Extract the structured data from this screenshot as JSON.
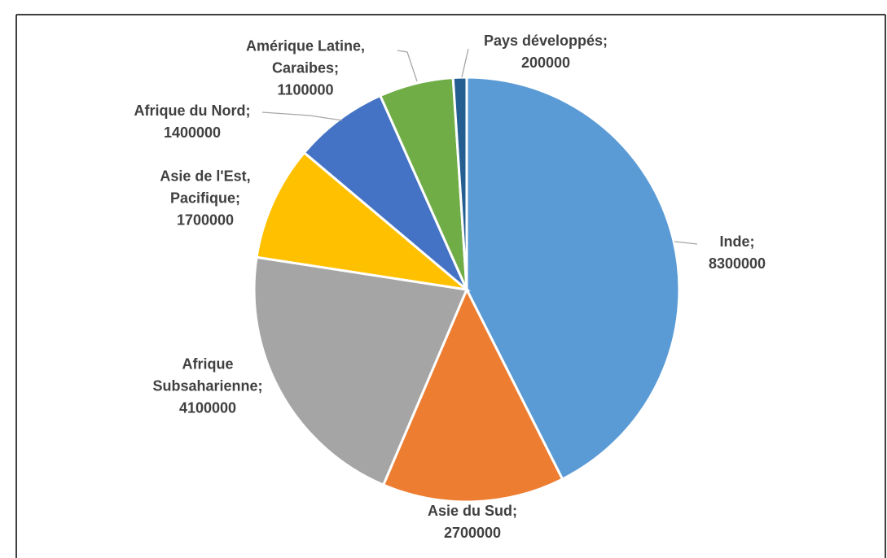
{
  "chart_data": {
    "type": "pie",
    "categories": [
      "Inde",
      "Asie du Sud",
      "Afrique Subsaharienne",
      "Asie de l'Est, Pacifique",
      "Afrique du Nord",
      "Amérique Latine, Caraibes",
      "Pays développés"
    ],
    "values": [
      8300000,
      2700000,
      4100000,
      1700000,
      1400000,
      1100000,
      200000
    ],
    "colors": [
      "#5b9bd5",
      "#ed7d31",
      "#a5a5a5",
      "#ffc000",
      "#4472c4",
      "#70ad47",
      "#255e91"
    ],
    "label_separator": ";"
  }
}
